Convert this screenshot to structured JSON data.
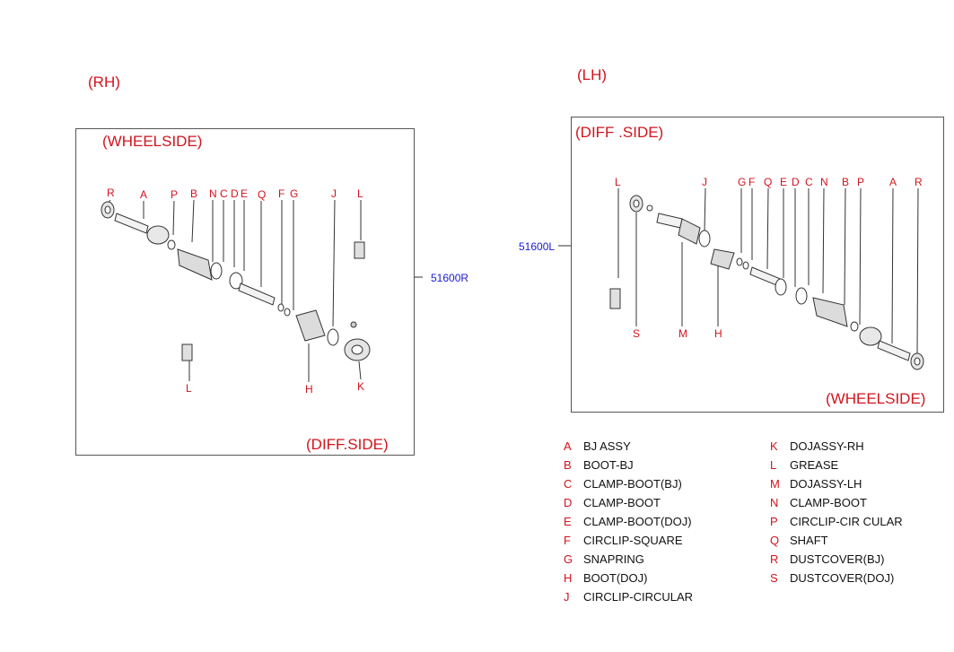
{
  "rh": {
    "side_title": "(RH)",
    "top_title": "(WHEELSIDE)",
    "bottom_title": "(DIFF.SIDE)",
    "part_code": "51600R",
    "top_labels": [
      "R",
      "A",
      "P",
      "B",
      "N",
      "C",
      "D",
      "E",
      "Q",
      "F",
      "G",
      "J",
      "L"
    ],
    "bottom_labels": [
      "L",
      "H",
      "K"
    ]
  },
  "lh": {
    "side_title": "(LH)",
    "top_title": "(DIFF .SIDE)",
    "bottom_title": "(WHEELSIDE)",
    "part_code": "51600L",
    "top_labels": [
      "L",
      "J",
      "G",
      "F",
      "Q",
      "E",
      "D",
      "C",
      "N",
      "B",
      "P",
      "A",
      "R"
    ],
    "bottom_labels": [
      "S",
      "M",
      "H"
    ]
  },
  "legend": [
    {
      "letter": "A",
      "name": "BJ ASSY"
    },
    {
      "letter": "B",
      "name": "BOOT-BJ"
    },
    {
      "letter": "C",
      "name": "CLAMP-BOOT(BJ)"
    },
    {
      "letter": "D",
      "name": "CLAMP-BOOT"
    },
    {
      "letter": "E",
      "name": "CLAMP-BOOT(DOJ)"
    },
    {
      "letter": "F",
      "name": "CIRCLIP-SQUARE"
    },
    {
      "letter": "G",
      "name": "SNAPRING"
    },
    {
      "letter": "H",
      "name": "BOOT(DOJ)"
    },
    {
      "letter": "J",
      "name": "CIRCLIP-CIRCULAR"
    },
    {
      "letter": "K",
      "name": "DOJASSY-RH"
    },
    {
      "letter": "L",
      "name": "GREASE"
    },
    {
      "letter": "M",
      "name": "DOJASSY-LH"
    },
    {
      "letter": "N",
      "name": "CLAMP-BOOT"
    },
    {
      "letter": "P",
      "name": "CIRCLIP-CIR CULAR"
    },
    {
      "letter": "Q",
      "name": "SHAFT"
    },
    {
      "letter": "R",
      "name": "DUSTCOVER(BJ)"
    },
    {
      "letter": "S",
      "name": "DUSTCOVER(DOJ)"
    }
  ],
  "colors": {
    "label": "#d2141e",
    "code": "#1a1ad0",
    "line": "#333333"
  }
}
